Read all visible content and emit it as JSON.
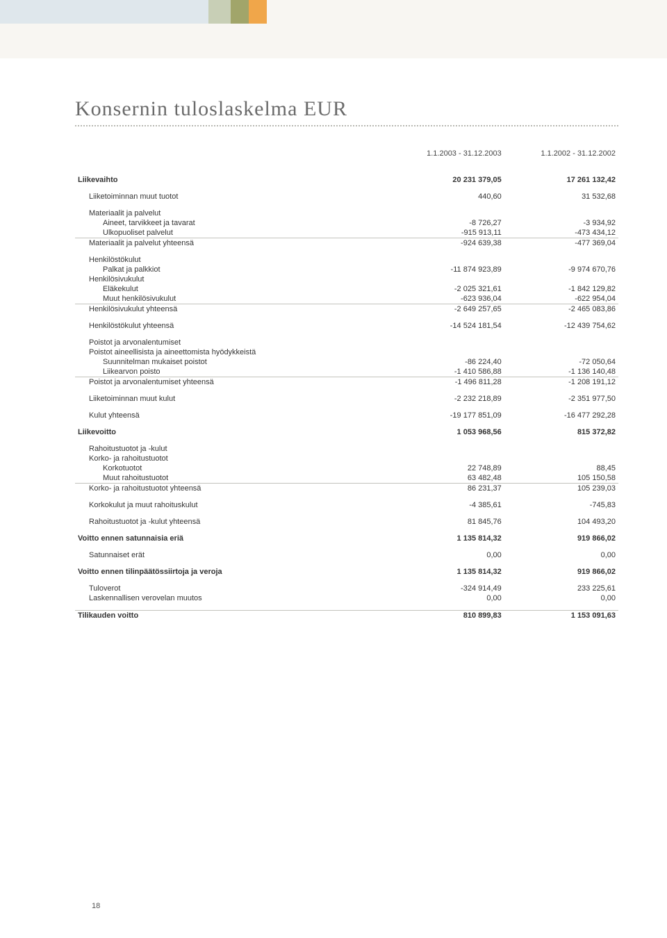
{
  "page_number": "18",
  "title": "Konsernin tuloslaskelma EUR",
  "columns": {
    "c1": "1.1.2003 - 31.12.2003",
    "c2": "1.1.2002 - 31.12.2002"
  },
  "rows": [
    {
      "bold": true,
      "spaced": true,
      "label": "Liikevaihto",
      "c1": "20 231 379,05",
      "c2": "17 261 132,42"
    },
    {
      "gap": true
    },
    {
      "indent": 1,
      "label": "Liiketoiminnan muut tuotot",
      "c1": "440,60",
      "c2": "31 532,68"
    },
    {
      "gap": true
    },
    {
      "indent": 1,
      "label": "Materiaalit ja palvelut"
    },
    {
      "indent": 2,
      "label": "Aineet, tarvikkeet ja tavarat",
      "c1": "-8 726,27",
      "c2": "-3 934,92"
    },
    {
      "indent": 2,
      "label": "Ulkopuoliset palvelut",
      "c1": "-915 913,11",
      "c2": "-473 434,12"
    },
    {
      "rule": true,
      "indent": 1,
      "label": "Materiaalit ja palvelut yhteensä",
      "c1": "-924 639,38",
      "c2": "-477 369,04"
    },
    {
      "gap": true
    },
    {
      "indent": 1,
      "label": "Henkilöstökulut"
    },
    {
      "indent": 2,
      "label": "Palkat ja palkkiot",
      "c1": "-11 874 923,89",
      "c2": "-9 974 670,76"
    },
    {
      "indent": 1,
      "label": "Henkilösivukulut"
    },
    {
      "indent": 2,
      "label": "Eläkekulut",
      "c1": "-2 025 321,61",
      "c2": "-1 842 129,82"
    },
    {
      "indent": 2,
      "label": "Muut henkilösivukulut",
      "c1": "-623 936,04",
      "c2": "-622 954,04"
    },
    {
      "rule": true,
      "indent": 1,
      "label": "Henkilösivukulut yhteensä",
      "c1": "-2 649 257,65",
      "c2": "-2 465 083,86"
    },
    {
      "gap": true
    },
    {
      "indent": 1,
      "label": "Henkilöstökulut yhteensä",
      "c1": "-14 524 181,54",
      "c2": "-12 439 754,62"
    },
    {
      "gap": true
    },
    {
      "indent": 1,
      "label": "Poistot ja arvonalentumiset"
    },
    {
      "indent": 1,
      "label": "Poistot aineellisista ja aineettomista hyödykkeistä"
    },
    {
      "indent": 2,
      "label": "Suunnitelman mukaiset poistot",
      "c1": "-86 224,40",
      "c2": "-72 050,64"
    },
    {
      "indent": 2,
      "label": "Liikearvon poisto",
      "c1": "-1 410 586,88",
      "c2": "-1 136 140,48"
    },
    {
      "rule": true,
      "indent": 1,
      "label": "Poistot ja arvonalentumiset yhteensä",
      "c1": "-1 496 811,28",
      "c2": "-1 208 191,12"
    },
    {
      "gap": true
    },
    {
      "indent": 1,
      "label": "Liiketoiminnan muut kulut",
      "c1": "-2 232 218,89",
      "c2": "-2 351 977,50"
    },
    {
      "gap": true
    },
    {
      "indent": 1,
      "label": "Kulut yhteensä",
      "c1": "-19 177 851,09",
      "c2": "-16 477 292,28"
    },
    {
      "gap": true
    },
    {
      "bold": true,
      "label": "Liikevoitto",
      "c1": "1 053 968,56",
      "c2": "815 372,82"
    },
    {
      "gap": true
    },
    {
      "indent": 1,
      "label": "Rahoitustuotot ja -kulut"
    },
    {
      "indent": 1,
      "label": "Korko- ja rahoitustuotot"
    },
    {
      "indent": 2,
      "label": "Korkotuotot",
      "c1": "22 748,89",
      "c2": "88,45"
    },
    {
      "indent": 2,
      "label": "Muut rahoitustuotot",
      "c1": "63 482,48",
      "c2": "105 150,58"
    },
    {
      "rule": true,
      "indent": 1,
      "label": "Korko- ja rahoitustuotot yhteensä",
      "c1": "86 231,37",
      "c2": "105 239,03"
    },
    {
      "gap": true
    },
    {
      "indent": 1,
      "label": "Korkokulut ja muut rahoituskulut",
      "c1": "-4 385,61",
      "c2": "-745,83"
    },
    {
      "gap": true
    },
    {
      "indent": 1,
      "label": "Rahoitustuotot ja -kulut yhteensä",
      "c1": "81 845,76",
      "c2": "104 493,20"
    },
    {
      "gap": true
    },
    {
      "bold": true,
      "label": "Voitto ennen satunnaisia eriä",
      "c1": "1 135 814,32",
      "c2": "919 866,02"
    },
    {
      "gap": true
    },
    {
      "indent": 1,
      "label": "Satunnaiset erät",
      "c1": "0,00",
      "c2": "0,00"
    },
    {
      "gap": true
    },
    {
      "bold": true,
      "label": "Voitto ennen tilinpäätössiirtoja ja veroja",
      "c1": "1 135 814,32",
      "c2": "919 866,02"
    },
    {
      "gap": true
    },
    {
      "indent": 1,
      "label": "Tuloverot",
      "c1": "-324 914,49",
      "c2": "233 225,61"
    },
    {
      "indent": 1,
      "label": "Laskennallisen verovelan muutos",
      "c1": "0,00",
      "c2": "0,00"
    },
    {
      "gap": true
    },
    {
      "rule": true,
      "bold": true,
      "label": "Tilikauden voitto",
      "c1": "810 899,83",
      "c2": "1 153 091,63"
    }
  ]
}
